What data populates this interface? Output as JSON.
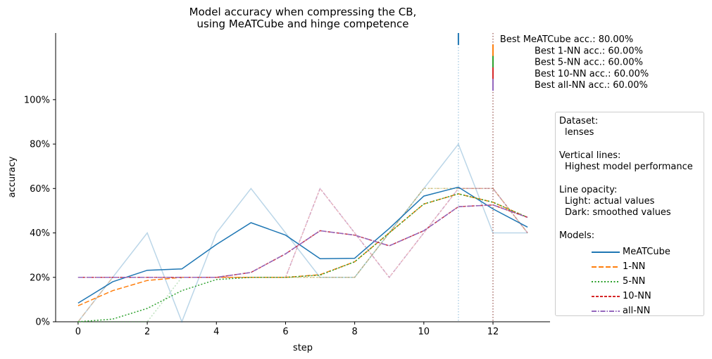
{
  "chart_data": {
    "type": "line",
    "title": [
      "Model accuracy when compressing the CB,",
      "using MeATCube and hinge competence"
    ],
    "xlabel": "step",
    "ylabel": "accuracy",
    "x": [
      0,
      1,
      2,
      3,
      4,
      5,
      6,
      7,
      8,
      9,
      10,
      11,
      12,
      13
    ],
    "xlim": [
      -0.65,
      13.65
    ],
    "ylim": [
      0,
      1.3
    ],
    "xticks": [
      0,
      2,
      4,
      6,
      8,
      10,
      12
    ],
    "yticks": [
      0,
      0.2,
      0.4,
      0.6,
      0.8,
      1.0
    ],
    "ytick_labels": [
      "0%",
      "20%",
      "40%",
      "60%",
      "80%",
      "100%"
    ],
    "series": [
      {
        "name": "MeATCube",
        "color": "#1f77b4",
        "dash": "",
        "actual": [
          0.0,
          0.2,
          0.4,
          0.0,
          0.4,
          0.6,
          0.4,
          0.2,
          0.2,
          0.4,
          0.6,
          0.8,
          0.4,
          0.4
        ],
        "smoothed": [
          0.084,
          0.18,
          0.232,
          0.238,
          0.348,
          0.446,
          0.39,
          0.284,
          0.286,
          0.42,
          0.566,
          0.606,
          0.508,
          0.426
        ],
        "best_step": 11,
        "best_text": "Best MeATCube acc.: 80.00%"
      },
      {
        "name": "1-NN",
        "color": "#ff7f0e",
        "dash": "7,3",
        "actual": [
          0.0,
          0.2,
          0.2,
          0.2,
          0.2,
          0.2,
          0.2,
          0.2,
          0.2,
          0.4,
          0.6,
          0.6,
          0.6,
          0.4
        ],
        "smoothed": [
          0.072,
          0.14,
          0.186,
          0.2,
          0.2,
          0.2,
          0.2,
          0.212,
          0.27,
          0.4,
          0.53,
          0.576,
          0.538,
          0.47
        ],
        "best_step": 12,
        "best_text": "Best 1-NN acc.: 60.00%"
      },
      {
        "name": "5-NN",
        "color": "#2ca02c",
        "dash": "2,2.5",
        "actual": [
          0.0,
          0.0,
          0.0,
          0.2,
          0.2,
          0.2,
          0.2,
          0.2,
          0.2,
          0.4,
          0.6,
          0.6,
          0.6,
          0.4
        ],
        "smoothed": [
          0.0,
          0.012,
          0.06,
          0.14,
          0.19,
          0.2,
          0.2,
          0.21,
          0.27,
          0.4,
          0.53,
          0.576,
          0.538,
          0.47
        ],
        "best_step": 12,
        "best_text": "Best 5-NN acc.: 60.00%"
      },
      {
        "name": "10-NN",
        "color": "#d62728",
        "dash": "4,2",
        "actual": [
          0.2,
          0.2,
          0.2,
          0.2,
          0.2,
          0.2,
          0.2,
          0.6,
          0.4,
          0.2,
          0.4,
          0.6,
          0.6,
          0.4
        ],
        "smoothed": [
          0.2,
          0.2,
          0.2,
          0.2,
          0.2,
          0.222,
          0.306,
          0.41,
          0.39,
          0.342,
          0.41,
          0.518,
          0.526,
          0.47
        ],
        "best_step": 12,
        "best_text": "Best 10-NN acc.: 60.00%"
      },
      {
        "name": "all-NN",
        "color": "#9467bd",
        "dash": "7,2,1.5,2",
        "actual": [
          0.2,
          0.2,
          0.2,
          0.2,
          0.2,
          0.2,
          0.2,
          0.6,
          0.4,
          0.2,
          0.4,
          0.6,
          0.6,
          0.4
        ],
        "smoothed": [
          0.2,
          0.2,
          0.2,
          0.2,
          0.2,
          0.222,
          0.306,
          0.41,
          0.39,
          0.342,
          0.41,
          0.518,
          0.526,
          0.47
        ],
        "best_step": 12,
        "best_text": "Best all-NN acc.: 60.00%"
      }
    ],
    "info_box": {
      "dataset_header": "Dataset:",
      "dataset_value": "lenses",
      "vlines_header": "Vertical lines:",
      "vlines_value": "Highest model performance",
      "opacity_header": "Line opacity:",
      "opacity_light": "Light: actual values",
      "opacity_dark": "Dark: smoothed values",
      "models_header": "Models:",
      "placement": "right"
    }
  }
}
